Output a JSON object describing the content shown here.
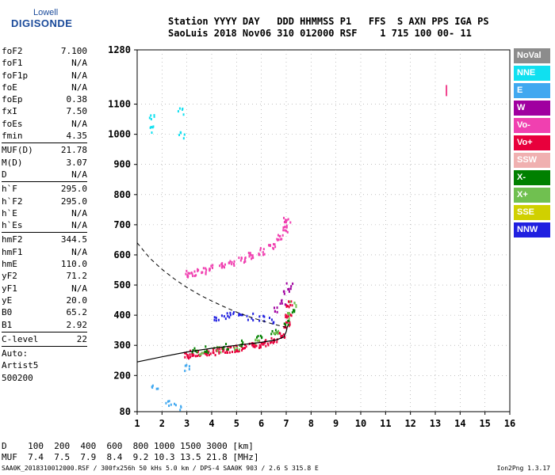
{
  "logo": {
    "line1": "Lowell",
    "line2": "DIGISONDE"
  },
  "header": {
    "line1": "Station YYYY DAY   DDD HHMMSS P1   FFS  S AXN PPS IGA PS",
    "line2": "SaoLuis 2018 Nov06 310 012000 RSF    1 715 100 00- 11"
  },
  "params": [
    {
      "label": "foF2",
      "value": "7.100"
    },
    {
      "label": "foF1",
      "value": "N/A"
    },
    {
      "label": "foF1p",
      "value": "N/A"
    },
    {
      "label": "foE",
      "value": "N/A"
    },
    {
      "label": "foEp",
      "value": "0.38"
    },
    {
      "label": "fxI",
      "value": "7.50"
    },
    {
      "label": "foEs",
      "value": "N/A"
    },
    {
      "label": "fmin",
      "value": "4.35"
    },
    {
      "sep": true
    },
    {
      "label": "MUF(D)",
      "value": "21.78"
    },
    {
      "label": "M(D)",
      "value": "3.07"
    },
    {
      "label": "D",
      "value": "N/A"
    },
    {
      "sep": true
    },
    {
      "label": "h`F",
      "value": "295.0"
    },
    {
      "label": "h`F2",
      "value": "295.0"
    },
    {
      "label": "h`E",
      "value": "N/A"
    },
    {
      "label": "h`Es",
      "value": "N/A"
    },
    {
      "sep": true
    },
    {
      "label": "hmF2",
      "value": "344.5"
    },
    {
      "label": "hmF1",
      "value": "N/A"
    },
    {
      "label": "hmE",
      "value": "110.0"
    },
    {
      "label": "yF2",
      "value": "71.2"
    },
    {
      "label": "yF1",
      "value": "N/A"
    },
    {
      "label": "yE",
      "value": "20.0"
    },
    {
      "label": "B0",
      "value": "65.2"
    },
    {
      "label": "B1",
      "value": "2.92"
    },
    {
      "sep": true
    },
    {
      "label": "C-level",
      "value": "22"
    },
    {
      "sep": true
    },
    {
      "text": "Auto:"
    },
    {
      "text": "Artist5"
    },
    {
      "text": "500200"
    }
  ],
  "legend": [
    {
      "label": "NoVal",
      "color": "#8c8c8c"
    },
    {
      "label": "NNE",
      "color": "#10e0f0"
    },
    {
      "label": "E",
      "color": "#40a8f0"
    },
    {
      "label": "W",
      "color": "#a000a0"
    },
    {
      "label": "Vo-",
      "color": "#f040b0"
    },
    {
      "label": "Vo+",
      "color": "#e8003c"
    },
    {
      "label": "SSW",
      "color": "#f0b0b0"
    },
    {
      "label": "X-",
      "color": "#008000"
    },
    {
      "label": "X+",
      "color": "#70c050"
    },
    {
      "label": "SSE",
      "color": "#d0d000"
    },
    {
      "label": "NNW",
      "color": "#2020e0"
    }
  ],
  "footer": {
    "line1": "D    100  200  400  600  800 1000 1500 3000 [km]",
    "line2": "MUF  7.4  7.5  7.9  8.4  9.2 10.3 13.5 21.8 [MHz]",
    "line3": "SAA0K_2018310012000.RSF / 300fx256h 50 kHs 5.0 km / DPS-4 SAA0K 903 / 2.6 S 315.8 E",
    "version": "Ion2Png 1.3.17"
  },
  "chart_data": {
    "type": "scatter",
    "title": "",
    "xlabel": "",
    "ylabel": "",
    "xlim": [
      1,
      16
    ],
    "ylim": [
      80,
      1280
    ],
    "x_ticks": [
      1,
      2,
      3,
      4,
      5,
      6,
      7,
      8,
      9,
      10,
      11,
      12,
      13,
      14,
      15,
      16
    ],
    "y_ticks": [
      80,
      200,
      300,
      400,
      500,
      600,
      700,
      800,
      900,
      1000,
      1100,
      1280
    ],
    "grid": "dotted",
    "legend_position": "right",
    "series": [
      {
        "color": "#e8003c",
        "points": [
          [
            3.0,
            270
          ],
          [
            3.2,
            275
          ],
          [
            3.5,
            275
          ],
          [
            3.8,
            280
          ],
          [
            4.1,
            282
          ],
          [
            4.4,
            285
          ],
          [
            4.7,
            290
          ],
          [
            5.0,
            293
          ],
          [
            5.3,
            297
          ],
          [
            5.6,
            300
          ],
          [
            5.9,
            305
          ],
          [
            6.2,
            312
          ],
          [
            6.5,
            322
          ],
          [
            6.8,
            340
          ],
          [
            7.0,
            370
          ],
          [
            7.05,
            400
          ],
          [
            7.1,
            440
          ]
        ]
      },
      {
        "color": "#f040b0",
        "points": [
          [
            3.0,
            540
          ],
          [
            3.3,
            545
          ],
          [
            3.7,
            550
          ],
          [
            4.0,
            560
          ],
          [
            4.4,
            568
          ],
          [
            4.8,
            578
          ],
          [
            5.2,
            588
          ],
          [
            5.6,
            600
          ],
          [
            6.0,
            615
          ],
          [
            6.4,
            635
          ],
          [
            6.7,
            660
          ],
          [
            6.9,
            690
          ],
          [
            7.0,
            720
          ]
        ]
      },
      {
        "color": "#2020e0",
        "points": [
          [
            4.2,
            395
          ],
          [
            4.5,
            400
          ],
          [
            4.8,
            405
          ],
          [
            5.1,
            400
          ],
          [
            5.5,
            398
          ],
          [
            6.0,
            392
          ],
          [
            6.4,
            388
          ]
        ]
      },
      {
        "color": "#008000",
        "points": [
          [
            3.3,
            285
          ],
          [
            3.8,
            290
          ],
          [
            4.5,
            300
          ],
          [
            5.2,
            310
          ],
          [
            5.9,
            325
          ],
          [
            6.5,
            345
          ],
          [
            7.0,
            380
          ],
          [
            7.2,
            420
          ]
        ]
      },
      {
        "color": "#70c050",
        "points": [
          [
            3.5,
            280
          ],
          [
            4.2,
            288
          ],
          [
            5.0,
            300
          ],
          [
            5.8,
            320
          ],
          [
            6.6,
            350
          ],
          [
            7.1,
            400
          ],
          [
            7.25,
            440
          ]
        ]
      },
      {
        "color": "#a000a0",
        "points": [
          [
            6.6,
            420
          ],
          [
            6.8,
            450
          ],
          [
            7.0,
            480
          ],
          [
            7.1,
            500
          ]
        ]
      },
      {
        "color": "#10e0f0",
        "points": [
          [
            1.55,
            1060
          ],
          [
            1.6,
            1020
          ],
          [
            2.7,
            1080
          ],
          [
            2.8,
            1000
          ]
        ]
      },
      {
        "color": "#40a8f0",
        "points": [
          [
            1.7,
            170
          ],
          [
            2.2,
            110
          ],
          [
            2.6,
            100
          ],
          [
            3.0,
            230
          ]
        ]
      }
    ],
    "curves": {
      "profile": [
        [
          1.0,
          245
        ],
        [
          2.0,
          262
        ],
        [
          3.0,
          278
        ],
        [
          4.0,
          290
        ],
        [
          5.0,
          300
        ],
        [
          6.0,
          310
        ],
        [
          6.6,
          318
        ],
        [
          6.9,
          328
        ],
        [
          7.0,
          345
        ],
        [
          7.05,
          365
        ]
      ],
      "dashed": [
        [
          1.0,
          640
        ],
        [
          1.5,
          590
        ],
        [
          2.0,
          552
        ],
        [
          2.5,
          520
        ],
        [
          3.0,
          492
        ],
        [
          3.5,
          468
        ],
        [
          4.0,
          447
        ],
        [
          4.5,
          428
        ],
        [
          5.0,
          410
        ],
        [
          5.5,
          395
        ],
        [
          6.0,
          382
        ],
        [
          6.5,
          370
        ],
        [
          7.0,
          360
        ]
      ]
    },
    "marker": {
      "x": 13.45,
      "y": 1145,
      "color": "#f0408c"
    }
  }
}
